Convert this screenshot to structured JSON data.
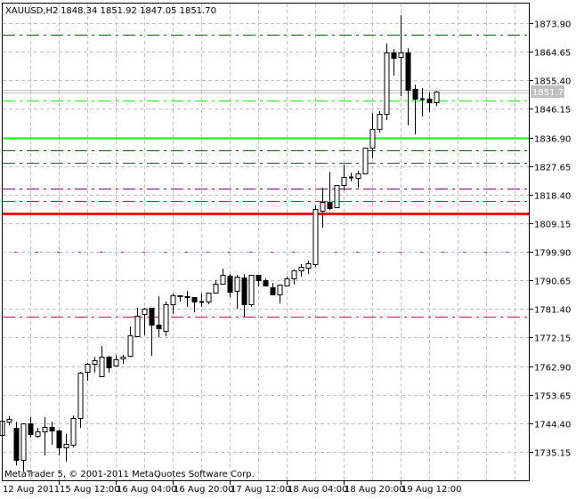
{
  "window": {
    "symbol_title": "XAUUSD,H2",
    "ohlc_readout": "1848.34 1851.92 1847.05 1851.70",
    "watermark": "MetaTrader 5, © 2001-2011 MetaQuotes Software Corp."
  },
  "colors": {
    "background": "#ffffff",
    "grid": "#c0c0c0",
    "axis": "#000000",
    "bull_body": "#ffffff",
    "bear_body": "#000000",
    "candle_outline": "#000000",
    "price_label_bg": "#c0c0c0",
    "price_label_text": "#ffffff"
  },
  "chart_data": {
    "type": "candlestick",
    "timeframe": "H2",
    "grid": true,
    "ylim": [
      1727.0,
      1881.0
    ],
    "y_ticks": [
      "1873.90",
      "1864.65",
      "1855.40",
      "1846.15",
      "1836.90",
      "1827.65",
      "1818.40",
      "1809.15",
      "1799.90",
      "1790.65",
      "1781.40",
      "1772.15",
      "1762.90",
      "1753.65",
      "1744.40",
      "1735.15"
    ],
    "x_tick_labels": [
      "12 Aug 2011",
      "15 Aug 12:00",
      "16 Aug 04:00",
      "16 Aug 20:00",
      "17 Aug 12:00",
      "18 Aug 04:00",
      "18 Aug 20:00",
      "19 Aug 12:00"
    ],
    "current_price_label": "1851.70",
    "candles": [
      [
        1740.6,
        1746.1,
        1739.7,
        1745.2
      ],
      [
        1744.9,
        1746.7,
        1743.8,
        1745.8
      ],
      [
        1742.9,
        1744.9,
        1730.8,
        1732.5
      ],
      [
        1732.5,
        1744.3,
        1728.8,
        1744.3
      ],
      [
        1744.3,
        1746.4,
        1739.7,
        1740.9
      ],
      [
        1740.3,
        1742.9,
        1739.7,
        1741.8
      ],
      [
        1741.8,
        1746.4,
        1734.0,
        1743.2
      ],
      [
        1743.2,
        1744.9,
        1737.4,
        1742.0
      ],
      [
        1742.0,
        1742.3,
        1734.0,
        1736.6
      ],
      [
        1736.6,
        1740.9,
        1732.0,
        1737.7
      ],
      [
        1737.4,
        1746.9,
        1736.6,
        1746.1
      ],
      [
        1746.1,
        1761.0,
        1742.9,
        1760.8
      ],
      [
        1761.0,
        1763.9,
        1758.2,
        1763.6
      ],
      [
        1763.6,
        1765.9,
        1760.8,
        1764.8
      ],
      [
        1759.6,
        1769.4,
        1759.6,
        1765.9
      ],
      [
        1765.9,
        1766.2,
        1760.8,
        1762.5
      ],
      [
        1763.1,
        1766.5,
        1763.1,
        1765.1
      ],
      [
        1765.4,
        1766.5,
        1763.6,
        1765.9
      ],
      [
        1766.2,
        1775.7,
        1765.9,
        1772.9
      ],
      [
        1772.6,
        1781.8,
        1772.6,
        1779.2
      ],
      [
        1779.8,
        1781.8,
        1772.9,
        1781.5
      ],
      [
        1781.8,
        1781.8,
        1766.2,
        1776.3
      ],
      [
        1776.3,
        1785.5,
        1772.3,
        1775.2
      ],
      [
        1774.3,
        1783.8,
        1772.6,
        1782.9
      ],
      [
        1782.9,
        1786.4,
        1779.8,
        1785.8
      ],
      [
        1785.8,
        1785.8,
        1783.8,
        1785.5
      ],
      [
        1785.5,
        1787.2,
        1782.1,
        1785.2
      ],
      [
        1785.2,
        1785.2,
        1780.3,
        1783.8
      ],
      [
        1783.8,
        1786.4,
        1782.1,
        1783.8
      ],
      [
        1783.8,
        1786.7,
        1782.9,
        1786.7
      ],
      [
        1786.7,
        1790.7,
        1786.7,
        1789.5
      ],
      [
        1789.5,
        1794.4,
        1789.5,
        1792.4
      ],
      [
        1792.1,
        1792.7,
        1785.2,
        1787.0
      ],
      [
        1787.2,
        1792.4,
        1781.5,
        1791.9
      ],
      [
        1791.6,
        1792.7,
        1778.9,
        1782.9
      ],
      [
        1782.9,
        1792.4,
        1782.1,
        1792.4
      ],
      [
        1792.4,
        1792.4,
        1788.7,
        1790.7
      ],
      [
        1790.7,
        1791.3,
        1789.0,
        1789.0
      ],
      [
        1788.4,
        1789.8,
        1786.1,
        1786.1
      ],
      [
        1786.1,
        1789.3,
        1783.2,
        1789.3
      ],
      [
        1789.0,
        1791.9,
        1789.0,
        1791.3
      ],
      [
        1791.3,
        1794.2,
        1789.3,
        1793.9
      ],
      [
        1793.9,
        1795.9,
        1791.9,
        1795.0
      ],
      [
        1794.7,
        1797.0,
        1792.7,
        1796.2
      ],
      [
        1795.9,
        1814.9,
        1795.0,
        1813.7
      ],
      [
        1813.2,
        1820.6,
        1807.7,
        1816.0
      ],
      [
        1816.0,
        1825.8,
        1813.4,
        1814.0
      ],
      [
        1814.3,
        1821.5,
        1814.3,
        1821.5
      ],
      [
        1821.5,
        1828.1,
        1819.8,
        1824.1
      ],
      [
        1824.1,
        1825.5,
        1822.7,
        1824.1
      ],
      [
        1823.8,
        1826.1,
        1820.6,
        1825.2
      ],
      [
        1825.2,
        1833.6,
        1825.2,
        1833.6
      ],
      [
        1833.6,
        1844.8,
        1830.1,
        1839.6
      ],
      [
        1839.6,
        1845.4,
        1838.5,
        1844.5
      ],
      [
        1844.5,
        1867.3,
        1842.5,
        1864.4
      ],
      [
        1864.4,
        1865.5,
        1856.9,
        1862.7
      ],
      [
        1863.0,
        1876.5,
        1850.3,
        1864.4
      ],
      [
        1864.4,
        1865.8,
        1840.8,
        1852.3
      ],
      [
        1852.6,
        1854.0,
        1837.9,
        1849.4
      ],
      [
        1849.4,
        1852.9,
        1843.7,
        1849.4
      ],
      [
        1849.4,
        1851.4,
        1845.1,
        1848.3
      ],
      [
        1848.34,
        1851.92,
        1847.05,
        1851.7
      ]
    ],
    "horizontal_levels": [
      {
        "price": 1870.2,
        "color": "#006400",
        "style": "dashdot"
      },
      {
        "price": 1852.3,
        "color": "#c0c0c0",
        "style": "solid"
      },
      {
        "price": 1851.4,
        "color": "#c0c0c0",
        "style": "solid"
      },
      {
        "price": 1848.9,
        "color": "#00ff00",
        "style": "dashdot"
      },
      {
        "price": 1836.8,
        "color": "#00ff00",
        "style": "solid-thick"
      },
      {
        "price": 1832.7,
        "color": "#006400",
        "style": "dashdot"
      },
      {
        "price": 1828.7,
        "color": "#2f4f4f",
        "style": "dashdot"
      },
      {
        "price": 1820.4,
        "color": "#800080",
        "style": "dashdot"
      },
      {
        "price": 1816.3,
        "color": "#dc143c",
        "style": "dashdot"
      },
      {
        "price": 1812.3,
        "color": "#ff0000",
        "style": "solid-thick"
      },
      {
        "price": 1799.9,
        "color": "#dc143c",
        "style": "dots"
      },
      {
        "price": 1778.9,
        "color": "#dc143c",
        "style": "dashdot"
      }
    ]
  }
}
